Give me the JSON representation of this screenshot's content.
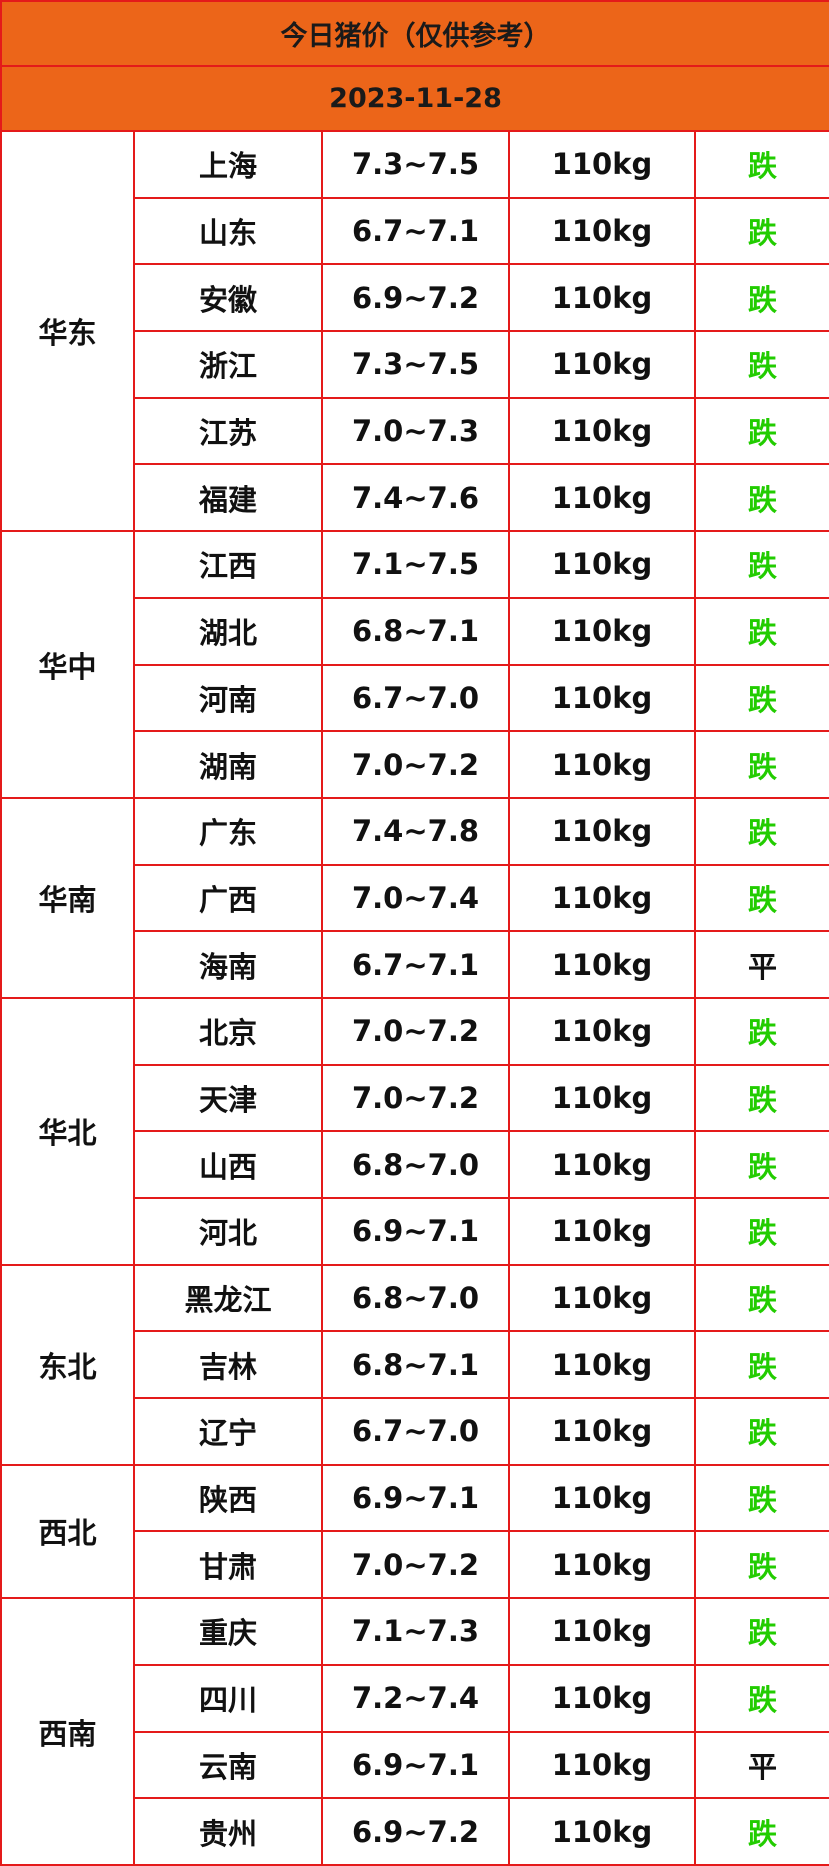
{
  "header": {
    "title": "今日猪价（仅供参考）",
    "date": "2023-11-28"
  },
  "regions": [
    {
      "name": "华东",
      "rows": [
        {
          "province": "上海",
          "price": "7.3~7.5",
          "weight": "110kg",
          "trend": "跌",
          "color": "#22cc00"
        },
        {
          "province": "山东",
          "price": "6.7~7.1",
          "weight": "110kg",
          "trend": "跌",
          "color": "#22cc00"
        },
        {
          "province": "安徽",
          "price": "6.9~7.2",
          "weight": "110kg",
          "trend": "跌",
          "color": "#22cc00"
        },
        {
          "province": "浙江",
          "price": "7.3~7.5",
          "weight": "110kg",
          "trend": "跌",
          "color": "#22cc00"
        },
        {
          "province": "江苏",
          "price": "7.0~7.3",
          "weight": "110kg",
          "trend": "跌",
          "color": "#22cc00"
        },
        {
          "province": "福建",
          "price": "7.4~7.6",
          "weight": "110kg",
          "trend": "跌",
          "color": "#22cc00"
        }
      ]
    },
    {
      "name": "华中",
      "rows": [
        {
          "province": "江西",
          "price": "7.1~7.5",
          "weight": "110kg",
          "trend": "跌",
          "color": "#22cc00"
        },
        {
          "province": "湖北",
          "price": "6.8~7.1",
          "weight": "110kg",
          "trend": "跌",
          "color": "#22cc00"
        },
        {
          "province": "河南",
          "price": "6.7~7.0",
          "weight": "110kg",
          "trend": "跌",
          "color": "#22cc00"
        },
        {
          "province": "湖南",
          "price": "7.0~7.2",
          "weight": "110kg",
          "trend": "跌",
          "color": "#22cc00"
        }
      ]
    },
    {
      "name": "华南",
      "rows": [
        {
          "province": "广东",
          "price": "7.4~7.8",
          "weight": "110kg",
          "trend": "跌",
          "color": "#22cc00"
        },
        {
          "province": "广西",
          "price": "7.0~7.4",
          "weight": "110kg",
          "trend": "跌",
          "color": "#22cc00"
        },
        {
          "province": "海南",
          "price": "6.7~7.1",
          "weight": "110kg",
          "trend": "平",
          "color": "#111111"
        }
      ]
    },
    {
      "name": "华北",
      "rows": [
        {
          "province": "北京",
          "price": "7.0~7.2",
          "weight": "110kg",
          "trend": "跌",
          "color": "#22cc00"
        },
        {
          "province": "天津",
          "price": "7.0~7.2",
          "weight": "110kg",
          "trend": "跌",
          "color": "#22cc00"
        },
        {
          "province": "山西",
          "price": "6.8~7.0",
          "weight": "110kg",
          "trend": "跌",
          "color": "#22cc00"
        },
        {
          "province": "河北",
          "price": "6.9~7.1",
          "weight": "110kg",
          "trend": "跌",
          "color": "#22cc00"
        }
      ]
    },
    {
      "name": "东北",
      "rows": [
        {
          "province": "黑龙江",
          "price": "6.8~7.0",
          "weight": "110kg",
          "trend": "跌",
          "color": "#22cc00"
        },
        {
          "province": "吉林",
          "price": "6.8~7.1",
          "weight": "110kg",
          "trend": "跌",
          "color": "#22cc00"
        },
        {
          "province": "辽宁",
          "price": "6.7~7.0",
          "weight": "110kg",
          "trend": "跌",
          "color": "#22cc00"
        }
      ]
    },
    {
      "name": "西北",
      "rows": [
        {
          "province": "陕西",
          "price": "6.9~7.1",
          "weight": "110kg",
          "trend": "跌",
          "color": "#22cc00"
        },
        {
          "province": "甘肃",
          "price": "7.0~7.2",
          "weight": "110kg",
          "trend": "跌",
          "color": "#22cc00"
        }
      ]
    },
    {
      "name": "西南",
      "rows": [
        {
          "province": "重庆",
          "price": "7.1~7.3",
          "weight": "110kg",
          "trend": "跌",
          "color": "#22cc00"
        },
        {
          "province": "四川",
          "price": "7.2~7.4",
          "weight": "110kg",
          "trend": "跌",
          "color": "#22cc00"
        },
        {
          "province": "云南",
          "price": "6.9~7.1",
          "weight": "110kg",
          "trend": "平",
          "color": "#111111"
        },
        {
          "province": "贵州",
          "price": "6.9~7.2",
          "weight": "110kg",
          "trend": "跌",
          "color": "#22cc00"
        }
      ]
    }
  ]
}
